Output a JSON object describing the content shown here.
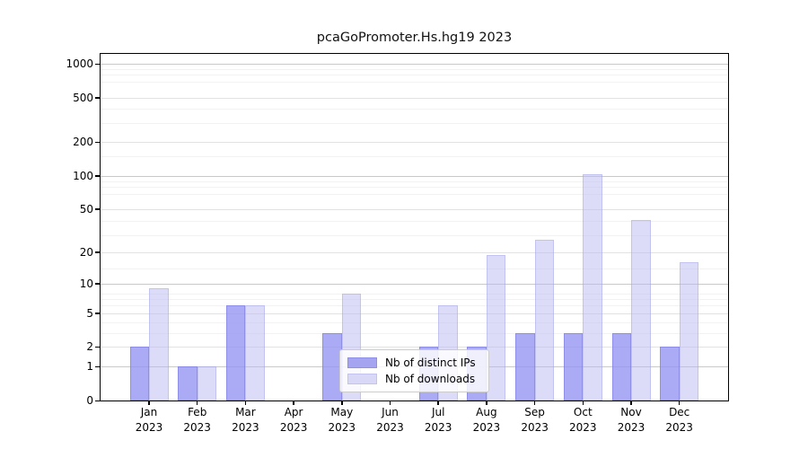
{
  "title": "pcaGoPromoter.Hs.hg19 2023",
  "legend": {
    "items": [
      {
        "label": "Nb of distinct IPs"
      },
      {
        "label": "Nb of downloads"
      }
    ]
  },
  "colors": {
    "ips_fill": "rgba(149,149,243,0.80)",
    "downloads_fill": "rgba(185,185,241,0.50)",
    "ips_legend_swatch": "#a4a4f1",
    "downloads_legend_swatch": "#d9d9f7",
    "major_grid_power10": "#c9c9c9",
    "major_grid_other": "#e2e2e2",
    "minor_grid": "#f2f2f2"
  },
  "chart_data": {
    "type": "bar",
    "title": "pcaGoPromoter.Hs.hg19 2023",
    "categories": [
      "Jan 2023",
      "Feb 2023",
      "Mar 2023",
      "Apr 2023",
      "May 2023",
      "Jun 2023",
      "Jul 2023",
      "Aug 2023",
      "Sep 2023",
      "Oct 2023",
      "Nov 2023",
      "Dec 2023"
    ],
    "series": [
      {
        "name": "Nb of distinct IPs",
        "values": [
          2,
          1,
          6,
          0,
          3,
          0,
          2,
          2,
          3,
          3,
          3,
          2
        ]
      },
      {
        "name": "Nb of downloads",
        "values": [
          9,
          1,
          6,
          0,
          8,
          0,
          6,
          19,
          26,
          103,
          40,
          16
        ]
      }
    ],
    "xlabel": "",
    "ylabel": "",
    "y_scale": "log10(value+1)",
    "y_ticks": [
      0,
      1,
      2,
      5,
      10,
      20,
      50,
      100,
      200,
      500,
      1000
    ],
    "y_minor_lines": [
      3,
      4,
      6,
      7,
      8,
      14,
      29,
      39,
      69,
      79,
      89,
      149,
      299,
      399,
      699,
      799,
      899
    ],
    "ylim": [
      0,
      1100
    ],
    "grid": "horizontal",
    "legend_position": "inside-bottom-center"
  }
}
